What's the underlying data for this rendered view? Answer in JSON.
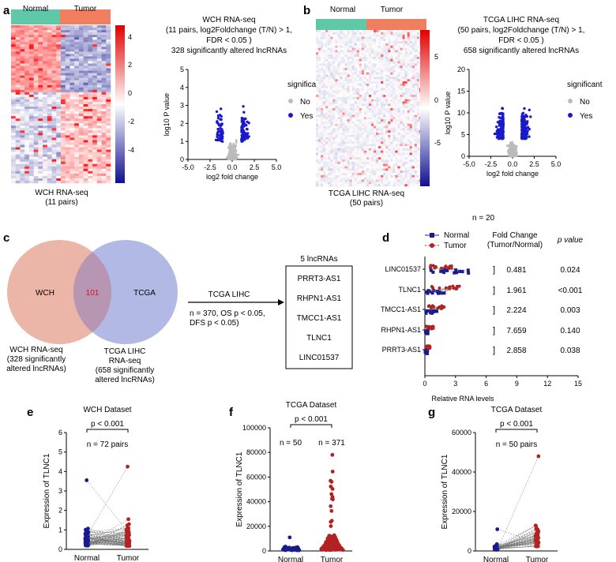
{
  "panels": {
    "a": {
      "letter": "a",
      "heatmap_groups": [
        "Normal",
        "Tumor"
      ],
      "heatmap_caption": [
        "WCH RNA-seq",
        "(11 pairs)"
      ],
      "colorbar_ticks": [
        "4",
        "2",
        "0",
        "-2",
        "-4"
      ],
      "title_lines": [
        "WCH RNA-seq",
        "(11 pairs, log2Foldchange (T/N) > 1,",
        "FDR < 0.05 )",
        "328 significantly altered lncRNAs"
      ]
    },
    "b": {
      "letter": "b",
      "heatmap_groups": [
        "Normal",
        "Tumor"
      ],
      "heatmap_caption": [
        "TCGA LIHC RNA-seq",
        "(50 pairs)"
      ],
      "colorbar_ticks": [
        "5",
        "0",
        "-5"
      ],
      "title_lines": [
        "TCGA LIHC RNA-seq",
        "(50 pairs, log2Foldchange (T/N) > 1,",
        "FDR < 0.05 )",
        "658 significantly altered lncRNAs"
      ]
    },
    "c": {
      "letter": "c",
      "venn_left": "WCH",
      "venn_right": "TCGA",
      "venn_overlap": "101",
      "left_caption": [
        "WCH RNA-seq",
        "(328 significantly",
        "altered lncRNAs)"
      ],
      "right_caption": [
        "TCGA LIHC",
        "RNA-seq",
        "(658 significantly",
        "altered lncRNAs)"
      ],
      "arrow_title": "TCGA LIHC",
      "arrow_notes": [
        "n = 370, OS p < 0.05,",
        "DFS p < 0.05)"
      ],
      "box_title": "5 lncRNAs",
      "box_items": [
        "PRRT3-AS1",
        "RHPN1-AS1",
        "TMCC1-AS1",
        "TLNC1",
        "LINC01537"
      ]
    },
    "d": {
      "letter": "d",
      "n_label": "n = 20",
      "legend": [
        "Normal",
        "Tumor"
      ],
      "fc_header": [
        "Fold Change",
        "(Tumor/Normal)"
      ],
      "p_header": "p value",
      "xlabel": "Relative RNA levels",
      "xticks": [
        "0",
        "3",
        "6",
        "9",
        "12",
        "15"
      ],
      "rows": [
        {
          "gene": "LINC01537",
          "fc": "0.481",
          "p": "0.024"
        },
        {
          "gene": "TLNC1",
          "fc": "1.961",
          "p": "<0.001"
        },
        {
          "gene": "TMCC1-AS1",
          "fc": "2.224",
          "p": "0.003"
        },
        {
          "gene": "RHPN1-AS1",
          "fc": "7.659",
          "p": "0.140"
        },
        {
          "gene": "PRRT3-AS1",
          "fc": "2.858",
          "p": "0.038"
        }
      ]
    },
    "e": {
      "letter": "e",
      "title": "WCH Dataset",
      "pvalue": "p < 0.001",
      "n": "n = 72 pairs"
    },
    "f": {
      "letter": "f",
      "title": "TCGA Dataset",
      "pvalue": "p < 0.001",
      "n_normal": "n = 50",
      "n_tumor": "n = 371"
    },
    "g": {
      "letter": "g",
      "title": "TCGA Dataset",
      "pvalue": "p < 0.001",
      "n": "n = 50 pairs"
    }
  },
  "chart_data": [
    {
      "type": "scatter",
      "panel": "a",
      "xlabel": "log2 fold change",
      "ylabel": "log10 P value",
      "xlim": [
        -5,
        5
      ],
      "ylim": [
        0,
        5
      ],
      "xticks": [
        "-5.0",
        "-2.5",
        "0.0",
        "2.5",
        "5.0"
      ],
      "yticks": [
        "0",
        "1",
        "2",
        "3",
        "4",
        "5"
      ],
      "legend_title": "significant",
      "series": [
        {
          "name": "No",
          "color": "#bbbbbb"
        },
        {
          "name": "Yes",
          "color": "#1a1acc"
        }
      ]
    },
    {
      "type": "scatter",
      "panel": "b",
      "xlabel": "log2 fold change",
      "ylabel": "log10 P value",
      "xlim": [
        -5,
        5
      ],
      "ylim": [
        0,
        20
      ],
      "xticks": [
        "-5.0",
        "-2.5",
        "0.0",
        "2.5",
        "5.0"
      ],
      "yticks": [
        "0",
        "5",
        "10",
        "15",
        "20"
      ],
      "legend_title": "significant",
      "series": [
        {
          "name": "No",
          "color": "#bbbbbb"
        },
        {
          "name": "Yes",
          "color": "#1a1acc"
        }
      ]
    },
    {
      "type": "scatter",
      "panel": "e",
      "categories": [
        "Normal",
        "Tumor"
      ],
      "ylabel": "Expression of TLNC1",
      "ylim": [
        0,
        6
      ],
      "yticks": [
        "0",
        "1",
        "2",
        "3",
        "4",
        "5",
        "6"
      ],
      "max_values": {
        "Normal": 3.55,
        "Tumor": 4.25
      }
    },
    {
      "type": "scatter",
      "panel": "f",
      "categories": [
        "Normal",
        "Tumor"
      ],
      "ylabel": "Expression of TLNC1",
      "ylim": [
        0,
        100000
      ],
      "yticks": [
        "0",
        "20000",
        "40000",
        "60000",
        "80000",
        "100000"
      ],
      "max_values": {
        "Normal": 11000,
        "Tumor": 78000
      }
    },
    {
      "type": "scatter",
      "panel": "g",
      "categories": [
        "Normal",
        "Tumor"
      ],
      "ylabel": "Expression of TLNC1",
      "ylim": [
        0,
        60000
      ],
      "yticks": [
        "0",
        "20000",
        "40000",
        "60000"
      ],
      "max_values": {
        "Normal": 11000,
        "Tumor": 48000
      }
    }
  ],
  "colors": {
    "normal": "#1a1a8c",
    "tumor": "#b22222",
    "normal_bar": "#5ec8a8",
    "tumor_bar": "#f07f60",
    "venn_left": "#e8a898",
    "venn_right": "#9aa2dc",
    "overlap_text": "#e01010"
  }
}
